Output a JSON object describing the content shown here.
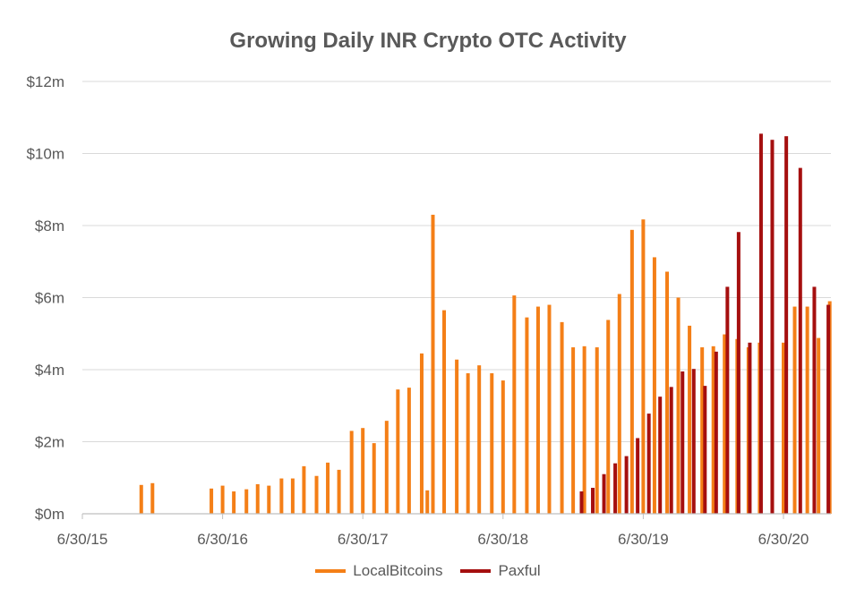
{
  "chart_data": {
    "type": "bar",
    "title": "Growing Daily INR Crypto OTC Activity",
    "xlabel": "",
    "ylabel": "",
    "x_tick_labels": [
      "6/30/15",
      "6/30/16",
      "6/30/17",
      "6/30/18",
      "6/30/19",
      "6/30/20"
    ],
    "x_tick_years": [
      2015.5,
      2016.5,
      2017.5,
      2018.5,
      2019.5,
      2020.5
    ],
    "x_range": [
      2015.5,
      2020.85
    ],
    "y_tick_labels": [
      "$0m",
      "$2m",
      "$4m",
      "$6m",
      "$8m",
      "$10m",
      "$12m"
    ],
    "y_tick_values": [
      0,
      2,
      4,
      6,
      8,
      10,
      12
    ],
    "ylim": [
      0,
      12
    ],
    "grid": true,
    "legend_position": "bottom",
    "series": [
      {
        "name": "LocalBitcoins",
        "color": "#F47F17",
        "x": [
          2015.92,
          2016.0,
          2016.42,
          2016.5,
          2016.58,
          2016.67,
          2016.75,
          2016.83,
          2016.92,
          2017.0,
          2017.08,
          2017.17,
          2017.25,
          2017.33,
          2017.42,
          2017.5,
          2017.58,
          2017.67,
          2017.75,
          2017.83,
          2017.92,
          2017.96,
          2018.0,
          2018.08,
          2018.17,
          2018.25,
          2018.33,
          2018.42,
          2018.5,
          2018.58,
          2018.67,
          2018.75,
          2018.83,
          2018.92,
          2019.0,
          2019.08,
          2019.17,
          2019.25,
          2019.33,
          2019.42,
          2019.5,
          2019.58,
          2019.67,
          2019.75,
          2019.83,
          2019.92,
          2020.0,
          2020.08,
          2020.17,
          2020.25,
          2020.33,
          2020.42,
          2020.5,
          2020.58,
          2020.67,
          2020.75,
          2020.83
        ],
        "values": [
          0.8,
          0.85,
          0.7,
          0.78,
          0.62,
          0.68,
          0.82,
          0.78,
          0.98,
          0.98,
          1.32,
          1.05,
          1.42,
          1.22,
          2.3,
          2.38,
          1.96,
          2.58,
          3.45,
          3.5,
          4.45,
          0.65,
          8.3,
          5.65,
          4.28,
          3.9,
          4.12,
          3.9,
          3.7,
          6.06,
          5.45,
          5.75,
          5.8,
          5.32,
          4.62,
          4.65,
          4.62,
          5.38,
          6.1,
          7.88,
          8.17,
          7.12,
          6.72,
          6.0,
          5.22,
          4.62,
          4.65,
          4.98,
          4.85,
          4.62,
          4.75,
          4.75,
          4.75,
          5.75,
          5.75,
          4.88,
          5.9
        ]
      },
      {
        "name": "Paxful",
        "color": "#A50F0F",
        "x": [
          2019.06,
          2019.14,
          2019.22,
          2019.3,
          2019.38,
          2019.46,
          2019.54,
          2019.62,
          2019.7,
          2019.78,
          2019.86,
          2019.94,
          2020.02,
          2020.1,
          2020.18,
          2020.26,
          2020.34,
          2020.42,
          2020.52,
          2020.62,
          2020.72,
          2020.82
        ],
        "values": [
          0.62,
          0.72,
          1.1,
          1.4,
          1.6,
          2.1,
          2.78,
          3.25,
          3.52,
          3.95,
          4.02,
          3.55,
          4.5,
          6.3,
          7.82,
          4.75,
          10.55,
          10.38,
          10.48,
          9.6,
          6.3,
          5.8
        ]
      }
    ]
  }
}
